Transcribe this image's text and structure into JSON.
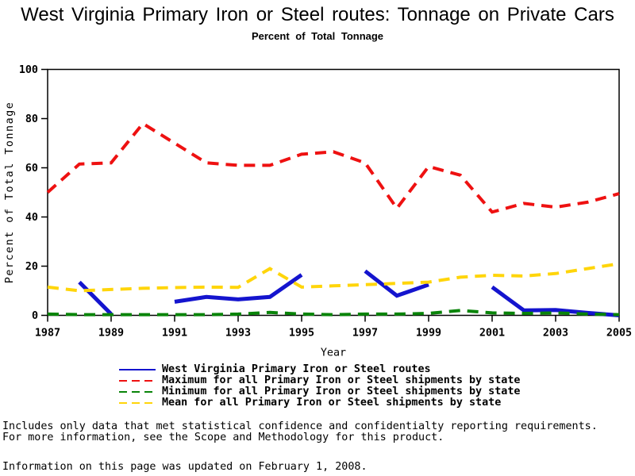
{
  "chart_data": {
    "type": "line",
    "title": "West Virginia Primary Iron or Steel routes: Tonnage on Private Cars",
    "subtitle": "Percent of Total Tonnage",
    "xlabel": "Year",
    "ylabel": "Percent of Total Tonnage",
    "x": [
      1987,
      1988,
      1989,
      1990,
      1991,
      1992,
      1993,
      1994,
      1995,
      1996,
      1997,
      1998,
      1999,
      2000,
      2001,
      2002,
      2003,
      2004,
      2005
    ],
    "x_tick_labels": [
      "1987",
      "1989",
      "1991",
      "1993",
      "1995",
      "1997",
      "1999",
      "2001",
      "2003",
      "2005"
    ],
    "x_ticks": [
      1987,
      1989,
      1991,
      1993,
      1995,
      1997,
      1999,
      2001,
      2003,
      2005
    ],
    "y_ticks": [
      0,
      20,
      40,
      60,
      80,
      100
    ],
    "xlim": [
      1987,
      2005
    ],
    "ylim": [
      0,
      100
    ],
    "grid": "off",
    "frame": true,
    "legend_position": "bottom-left",
    "series": [
      {
        "name": "West Virginia Primary Iron or Steel routes",
        "color": "#1414CE",
        "line_style": "solid",
        "values": [
          null,
          13.5,
          0.5,
          null,
          5.5,
          7.5,
          6.5,
          7.5,
          16.5,
          null,
          18,
          8,
          12.5,
          null,
          11.5,
          2,
          2.2,
          1,
          0
        ]
      },
      {
        "name": "Maximum for all Primary Iron or Steel shipments by state",
        "color": "#EE1111",
        "line_style": "dashed",
        "values": [
          50,
          61.5,
          62,
          78,
          70,
          62,
          61,
          61,
          65.5,
          66.5,
          62,
          43.5,
          60.5,
          57,
          42,
          45.5,
          44,
          46,
          49.5
        ]
      },
      {
        "name": "Minimum for all Primary Iron or Steel shipments by state",
        "color": "#098409",
        "line_style": "dashed",
        "values": [
          0.5,
          0.3,
          0.3,
          0.3,
          0.3,
          0.3,
          0.5,
          1.2,
          0.5,
          0.3,
          0.5,
          0.5,
          0.8,
          2,
          1,
          0.8,
          1,
          0.5,
          0.3
        ]
      },
      {
        "name": "Mean for all Primary Iron or Steel shipments by state",
        "color": "#FFD50A",
        "line_style": "dashed",
        "values": [
          11.5,
          10,
          10.5,
          11,
          11.3,
          11.5,
          11.4,
          19,
          11.5,
          12,
          12.5,
          13,
          13.5,
          15.5,
          16.3,
          16,
          17,
          19,
          21
        ]
      }
    ]
  },
  "footnotes": {
    "line1": "Includes only data that met statistical confidence and confidentialty reporting requirements.",
    "line2": "For more information, see the Scope and Methodology for this product.",
    "updated": "Information on this page was updated on February 1, 2008."
  }
}
